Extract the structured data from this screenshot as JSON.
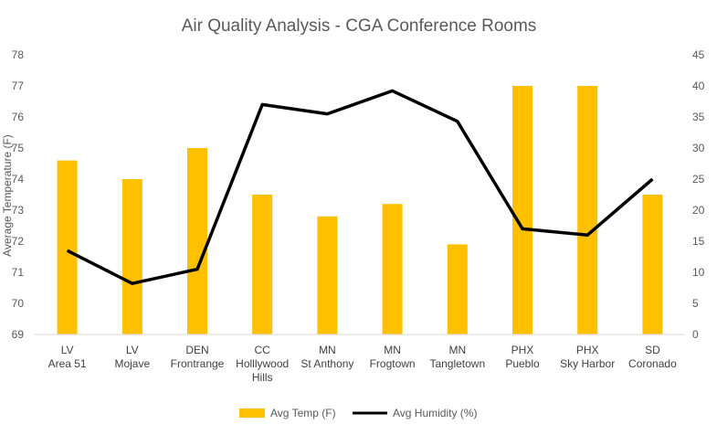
{
  "chart_data": {
    "type": "bar",
    "title": "Air Quality Analysis - CGA Conference Rooms",
    "categories": [
      [
        "LV",
        "Area 51"
      ],
      [
        "LV",
        "Mojave"
      ],
      [
        "DEN",
        "Frontrange"
      ],
      [
        "CC",
        "Holllywood",
        "Hills"
      ],
      [
        "MN",
        "St Anthony"
      ],
      [
        "MN",
        "Frogtown"
      ],
      [
        "MN",
        "Tangletown"
      ],
      [
        "PHX",
        "Pueblo"
      ],
      [
        "PHX",
        "Sky Harbor"
      ],
      [
        "SD",
        "Coronado"
      ]
    ],
    "series": [
      {
        "name": "Avg Temp (F)",
        "type": "bar",
        "axis": "left",
        "color": "#FFC000",
        "values": [
          74.6,
          74.0,
          75.0,
          73.5,
          72.8,
          73.2,
          71.9,
          77.0,
          77.0,
          73.5
        ]
      },
      {
        "name": "Avg Humidity (%)",
        "type": "line",
        "axis": "right",
        "color": "#000000",
        "values": [
          13.5,
          8.2,
          10.5,
          37.0,
          35.5,
          39.2,
          34.3,
          17.0,
          16.0,
          25.0
        ]
      }
    ],
    "y_left": {
      "min": 69,
      "max": 78,
      "step": 1,
      "label": "Average Temperature (F)"
    },
    "y_right": {
      "min": 0,
      "max": 45,
      "step": 5
    },
    "grid": false,
    "legend_position": "bottom"
  }
}
